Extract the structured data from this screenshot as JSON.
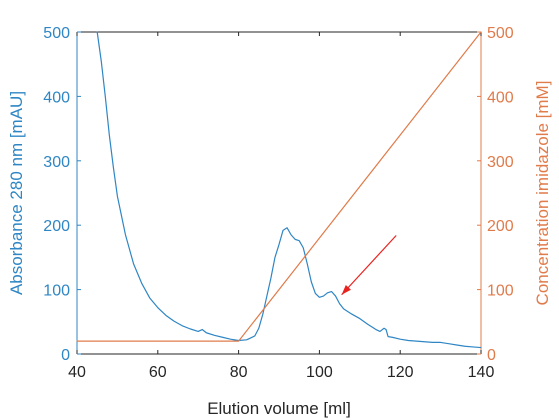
{
  "chart_data": {
    "type": "line",
    "xlabel": "Elution volume [ml]",
    "ylabel_left": "Absorbance 280 nm [mAU]",
    "ylabel_right": "Concentration imidazole [mM]",
    "xlim": [
      40,
      140
    ],
    "ylim_left": [
      0,
      500
    ],
    "ylim_right": [
      0,
      500
    ],
    "x_ticks": [
      40,
      60,
      80,
      100,
      120,
      140
    ],
    "y_ticks_left": [
      0,
      100,
      200,
      300,
      400,
      500
    ],
    "y_ticks_right": [
      0,
      100,
      200,
      300,
      400,
      500
    ],
    "x_tick_labels": [
      "40",
      "60",
      "80",
      "100",
      "120",
      "140"
    ],
    "y_tick_labels_left": [
      "0",
      "100",
      "200",
      "300",
      "400",
      "500"
    ],
    "y_tick_labels_right": [
      "0",
      "100",
      "200",
      "300",
      "400",
      "500"
    ],
    "grid": false,
    "series": [
      {
        "axis": "left",
        "color": "#2f86c4",
        "x": [
          45,
          46,
          47,
          48,
          49,
          50,
          52,
          54,
          56,
          58,
          60,
          62,
          64,
          66,
          68,
          70,
          71,
          72,
          74,
          76,
          78,
          80,
          82,
          83,
          84,
          85,
          86,
          87,
          88,
          89,
          90,
          91,
          92,
          93,
          94,
          95,
          96,
          97,
          98,
          99,
          100,
          101,
          102,
          103,
          104,
          105,
          106,
          108,
          110,
          112,
          114,
          115,
          116,
          116.5,
          117,
          118,
          120,
          122,
          124,
          126,
          128,
          130,
          132,
          134,
          136,
          138,
          140
        ],
        "y": [
          500,
          455,
          400,
          340,
          290,
          245,
          185,
          140,
          110,
          87,
          72,
          60,
          51,
          44,
          39,
          35,
          38,
          33,
          29,
          26,
          23,
          21,
          22,
          25,
          28,
          40,
          62,
          90,
          118,
          150,
          170,
          192,
          196,
          185,
          178,
          176,
          165,
          140,
          112,
          94,
          88,
          90,
          95,
          97,
          90,
          78,
          70,
          62,
          55,
          46,
          38,
          35,
          40,
          38,
          27,
          26,
          23,
          21,
          20,
          19,
          18,
          18,
          16,
          14,
          12,
          11,
          10
        ]
      },
      {
        "axis": "right",
        "color": "#e07b4b",
        "x": [
          40,
          80,
          140
        ],
        "y": [
          20,
          20,
          500
        ]
      }
    ],
    "annotations": [
      {
        "type": "arrow",
        "color": "#e8231f",
        "from": [
          119,
          184
        ],
        "to": [
          105.5,
          92
        ]
      }
    ]
  }
}
